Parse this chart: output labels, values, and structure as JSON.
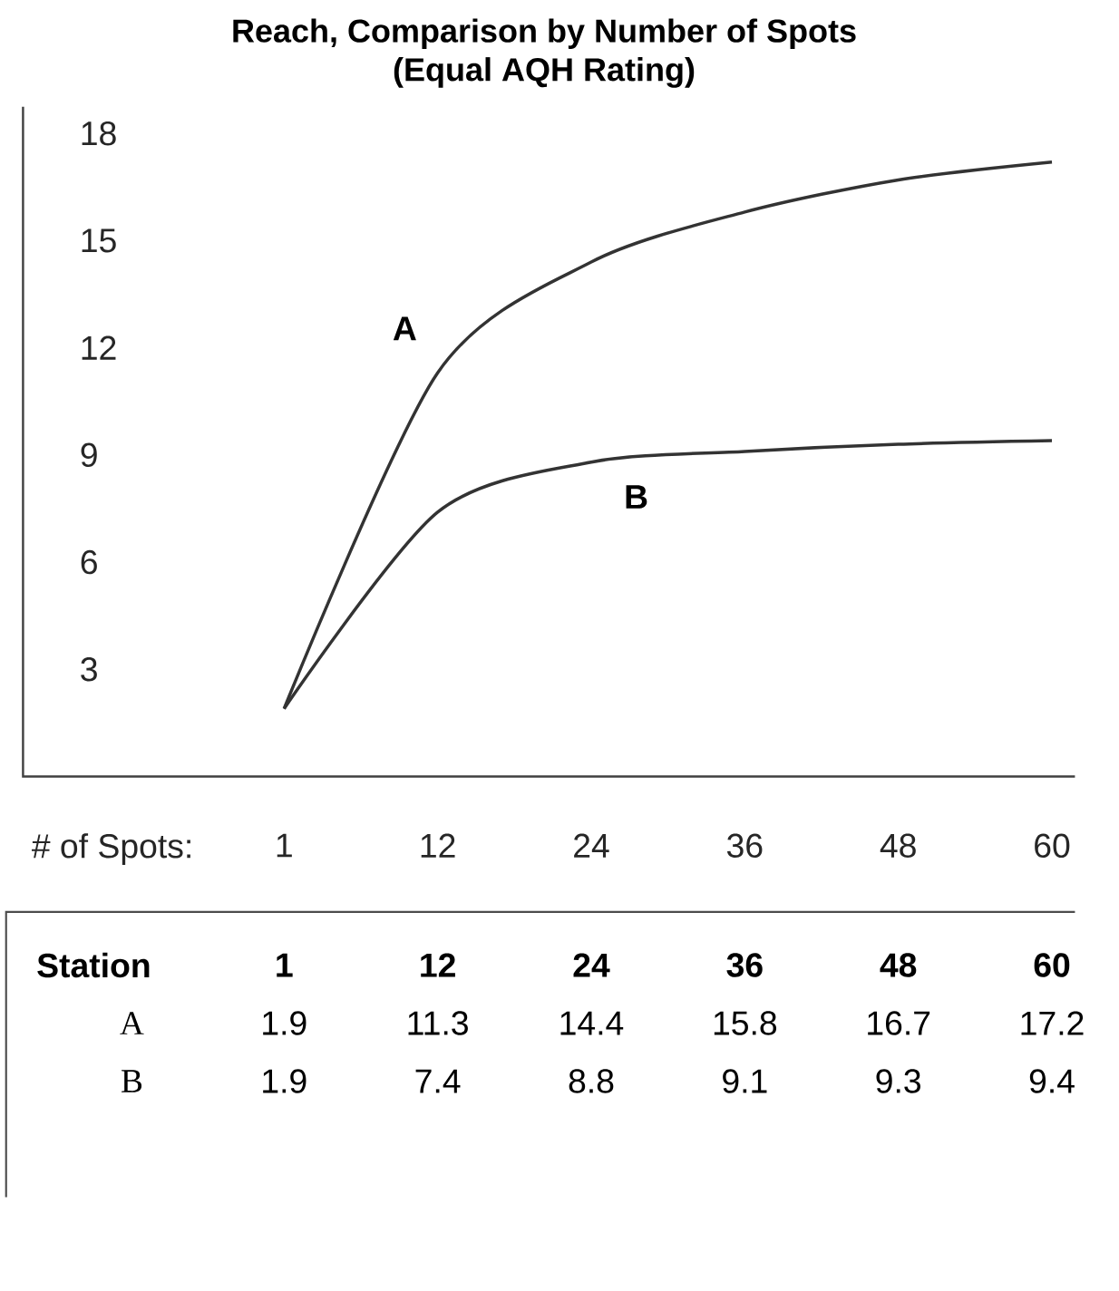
{
  "chart_data": {
    "type": "line",
    "title": "Reach, Comparison by Number of Spots",
    "subtitle": "(Equal AQH Rating)",
    "xlabel": "# of Spots:",
    "legend_title": "Station",
    "categories": [
      "1",
      "12",
      "24",
      "36",
      "48",
      "60"
    ],
    "series": [
      {
        "name": "A",
        "color": "#333333",
        "values": [
          1.9,
          11.3,
          14.4,
          15.8,
          16.7,
          17.2
        ]
      },
      {
        "name": "B",
        "color": "#333333",
        "values": [
          1.9,
          7.4,
          8.8,
          9.1,
          9.3,
          9.4
        ]
      }
    ],
    "ylim": [
      0,
      18
    ],
    "yticks": [
      3,
      6,
      9,
      12,
      15,
      18
    ],
    "data_labels": true,
    "grid": false,
    "legend": false,
    "marker": "none",
    "line_style": "solid"
  }
}
